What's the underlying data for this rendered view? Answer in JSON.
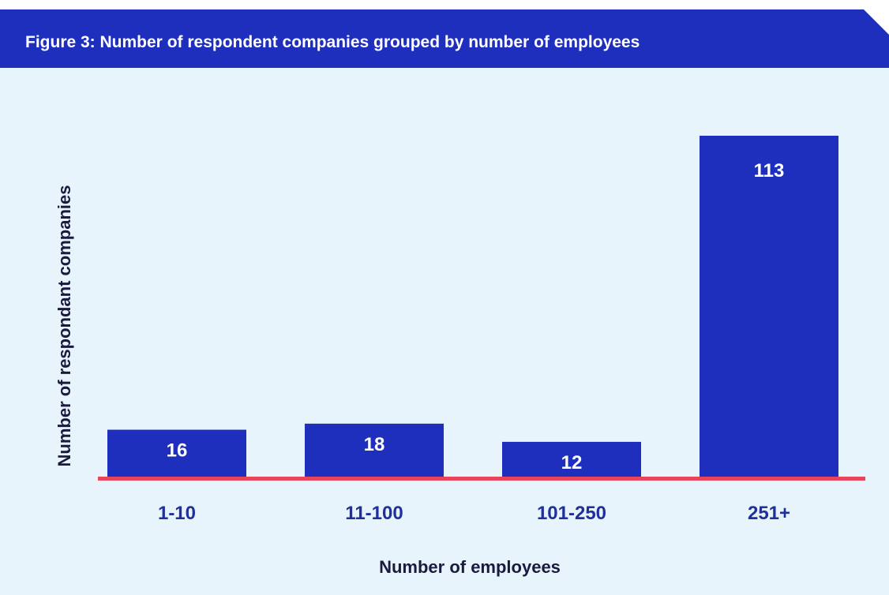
{
  "chart_data": {
    "type": "bar",
    "title": "Figure 3: Number of respondent companies grouped by number of employees",
    "xlabel": "Number of employees",
    "ylabel": "Number of respondant companies",
    "categories": [
      "1-10",
      "11-100",
      "101-250",
      "251+"
    ],
    "values": [
      16,
      18,
      12,
      113
    ],
    "ylim": [
      0,
      113
    ],
    "grid": false,
    "colors": {
      "bar": "#1f2fbd",
      "baseline": "#e8445a",
      "label": "#ffffff",
      "tick": "#1f2f9b",
      "banner": "#1f2fbd",
      "background": "#e8f4fb"
    }
  }
}
